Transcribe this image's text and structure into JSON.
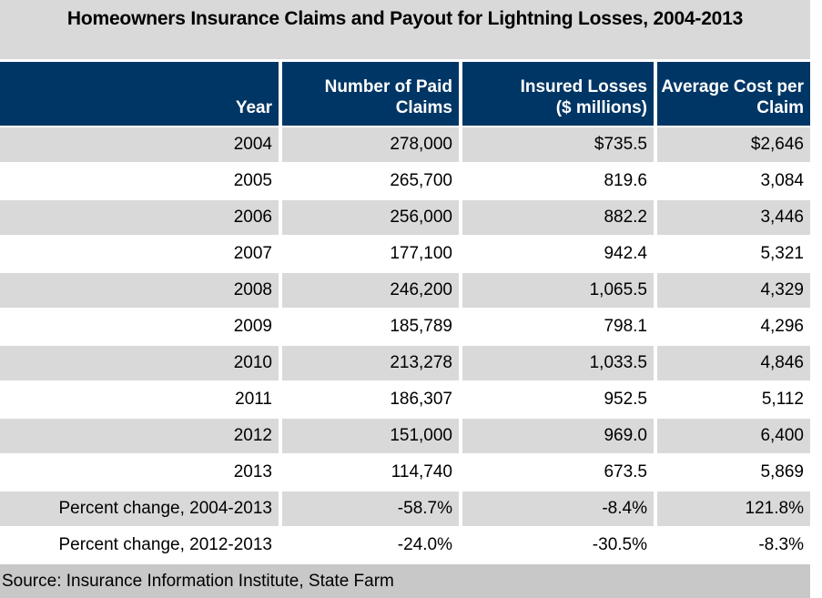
{
  "chart_data": {
    "type": "table",
    "title": "Homeowners Insurance Claims and Payout for Lightning Losses, 2004-2013",
    "columns": [
      {
        "line1": "",
        "line2": "Year"
      },
      {
        "line1": "Number of Paid",
        "line2": "Claims"
      },
      {
        "line1": "Insured Losses",
        "line2": "($ millions)"
      },
      {
        "line1": "Average Cost per",
        "line2": "Claim"
      }
    ],
    "rows": [
      {
        "year": "2004",
        "claims": "278,000",
        "losses": "$735.5",
        "avg_cost": "$2,646"
      },
      {
        "year": "2005",
        "claims": "265,700",
        "losses": "819.6",
        "avg_cost": "3,084"
      },
      {
        "year": "2006",
        "claims": "256,000",
        "losses": "882.2",
        "avg_cost": "3,446"
      },
      {
        "year": "2007",
        "claims": "177,100",
        "losses": "942.4",
        "avg_cost": "5,321"
      },
      {
        "year": "2008",
        "claims": "246,200",
        "losses": "1,065.5",
        "avg_cost": "4,329"
      },
      {
        "year": "2009",
        "claims": "185,789",
        "losses": "798.1",
        "avg_cost": "4,296"
      },
      {
        "year": "2010",
        "claims": "213,278",
        "losses": "1,033.5",
        "avg_cost": "4,846"
      },
      {
        "year": "2011",
        "claims": "186,307",
        "losses": "952.5",
        "avg_cost": "5,112"
      },
      {
        "year": "2012",
        "claims": "151,000",
        "losses": "969.0",
        "avg_cost": "6,400"
      },
      {
        "year": "2013",
        "claims": "114,740",
        "losses": "673.5",
        "avg_cost": "5,869"
      },
      {
        "year": "Percent change, 2004-2013",
        "claims": "-58.7%",
        "losses": "-8.4%",
        "avg_cost": "121.8%"
      },
      {
        "year": "Percent change, 2012-2013",
        "claims": "-24.0%",
        "losses": "-30.5%",
        "avg_cost": "-8.3%"
      }
    ],
    "source": "Source: Insurance Information Institute, State Farm",
    "layout": {
      "legend": "none",
      "grid": "alternating-row-shading",
      "value_alignment": "right"
    }
  },
  "colors": {
    "header_bg": "#003665",
    "header_text": "#FFFFFF",
    "row_shaded_bg": "#D9D9D9",
    "row_plain_bg": "#FFFFFF",
    "title_bg": "#D9D9D9",
    "source_bg": "#C8C8C8",
    "text": "#000000"
  }
}
